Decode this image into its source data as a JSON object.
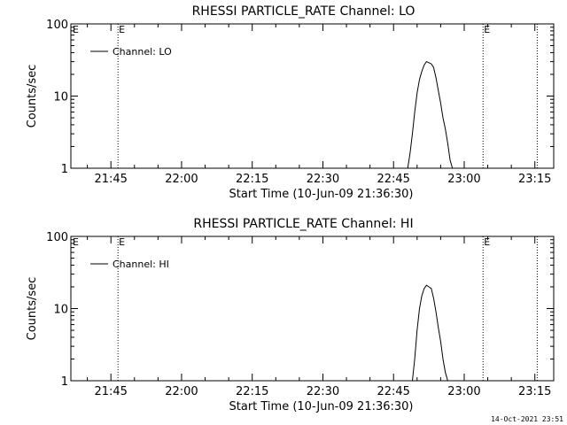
{
  "footer_timestamp": "14-Oct-2021 23:51",
  "chart_data": [
    {
      "type": "line",
      "title": "RHESSI PARTICLE_RATE Channel: LO",
      "xlabel": "Start Time (10-Jun-09 21:36:30)",
      "ylabel": "Counts/sec",
      "y_scale": "log",
      "ylim": [
        1,
        100
      ],
      "y_ticks": [
        "1",
        "10",
        "100"
      ],
      "xlim": [
        "21:36:30",
        "23:19:00"
      ],
      "x_ticks": [
        "21:45",
        "22:00",
        "22:15",
        "22:30",
        "22:45",
        "23:00",
        "23:15"
      ],
      "grid": false,
      "legend": "top-left",
      "series": [
        {
          "name": "Channel: LO",
          "x": [
            "22:48:00",
            "22:48:30",
            "22:49:00",
            "22:49:30",
            "22:50:00",
            "22:50:30",
            "22:51:00",
            "22:51:30",
            "22:52:00",
            "22:52:30",
            "22:53:00",
            "22:53:30",
            "22:54:00",
            "22:54:30",
            "22:55:00",
            "22:55:30",
            "22:56:00",
            "22:56:30",
            "22:57:00",
            "22:57:30"
          ],
          "values": [
            1.0,
            1.6,
            3.0,
            6.0,
            11.0,
            17.0,
            22.0,
            27.0,
            30.0,
            29.0,
            28.0,
            25.0,
            18.0,
            12.0,
            8.0,
            5.0,
            3.5,
            2.2,
            1.3,
            1.0
          ]
        }
      ],
      "markers": [
        {
          "x": "21:46:30",
          "label": "E"
        },
        {
          "x": "23:04:00",
          "label": "E"
        },
        {
          "x": "23:15:30",
          "label": ""
        }
      ]
    },
    {
      "type": "line",
      "title": "RHESSI PARTICLE_RATE Channel: HI",
      "xlabel": "Start Time (10-Jun-09 21:36:30)",
      "ylabel": "Counts/sec",
      "y_scale": "log",
      "ylim": [
        1,
        100
      ],
      "y_ticks": [
        "1",
        "10",
        "100"
      ],
      "xlim": [
        "21:36:30",
        "23:19:00"
      ],
      "x_ticks": [
        "21:45",
        "22:00",
        "22:15",
        "22:30",
        "22:45",
        "23:00",
        "23:15"
      ],
      "grid": false,
      "legend": "top-left",
      "series": [
        {
          "name": "Channel: HI",
          "x": [
            "22:49:00",
            "22:49:30",
            "22:50:00",
            "22:50:30",
            "22:51:00",
            "22:51:30",
            "22:52:00",
            "22:52:30",
            "22:53:00",
            "22:53:30",
            "22:54:00",
            "22:54:30",
            "22:55:00",
            "22:55:30",
            "22:56:00",
            "22:56:30",
            "22:57:00"
          ],
          "values": [
            1.0,
            2.0,
            5.0,
            10.0,
            15.0,
            19.0,
            21.0,
            20.0,
            19.0,
            14.0,
            9.0,
            5.5,
            3.5,
            2.0,
            1.3,
            1.0,
            1.0
          ]
        }
      ],
      "markers": [
        {
          "x": "21:46:30",
          "label": "E"
        },
        {
          "x": "23:04:00",
          "label": "E"
        },
        {
          "x": "23:15:30",
          "label": ""
        }
      ]
    }
  ]
}
